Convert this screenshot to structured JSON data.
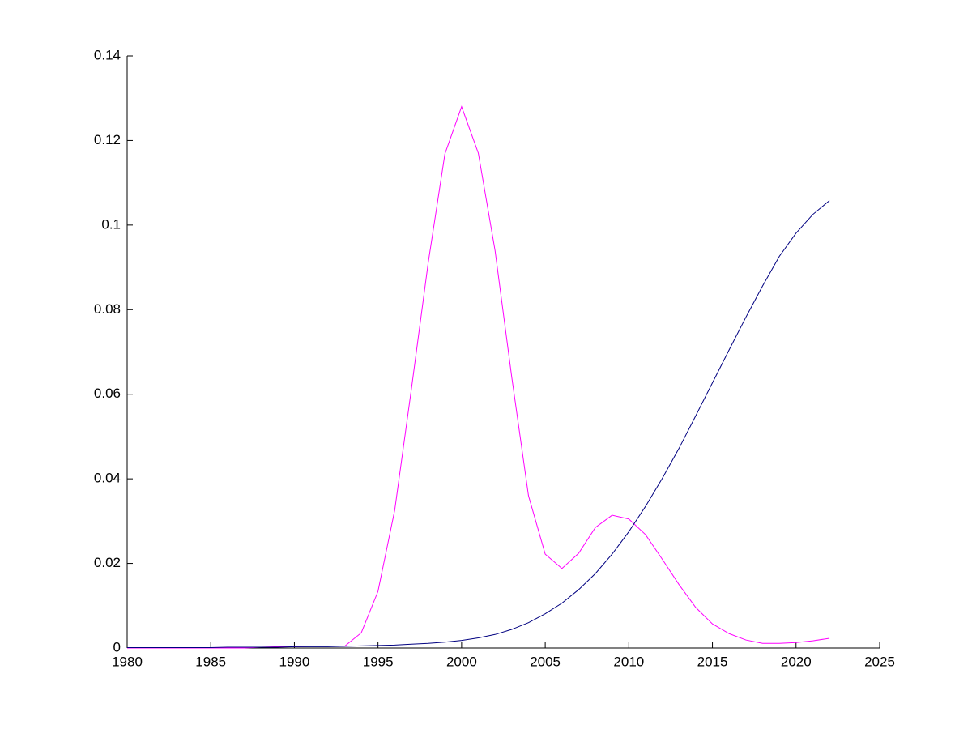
{
  "chart_data": {
    "type": "line",
    "x": [
      1980,
      1981,
      1982,
      1983,
      1984,
      1985,
      1986,
      1987,
      1988,
      1989,
      1990,
      1991,
      1992,
      1993,
      1994,
      1995,
      1996,
      1997,
      1998,
      1999,
      2000,
      2001,
      2002,
      2003,
      2004,
      2005,
      2006,
      2007,
      2008,
      2009,
      2010,
      2011,
      2012,
      2013,
      2014,
      2015,
      2016,
      2017,
      2018,
      2019,
      2020,
      2021,
      2022
    ],
    "series": [
      {
        "color": "#ff00ff",
        "values": [
          0,
          0,
          0,
          0,
          0,
          0,
          0,
          0,
          0.0002,
          0.0003,
          0.0003,
          0.0004,
          0.0004,
          0.0004,
          0.0036,
          0.0134,
          0.0326,
          0.0613,
          0.091,
          0.1168,
          0.128,
          0.117,
          0.094,
          0.064,
          0.036,
          0.0222,
          0.0188,
          0.0224,
          0.0285,
          0.0314,
          0.0305,
          0.0268,
          0.021,
          0.015,
          0.0096,
          0.0057,
          0.0034,
          0.0019,
          0.0011,
          0.0011,
          0.0013,
          0.0017,
          0.0023
        ]
      },
      {
        "color": "#000080",
        "values": [
          0.0001,
          0.0001,
          0.0001,
          0.0001,
          0.0001,
          0.0001,
          0.0002,
          0.0002,
          0.0002,
          0.0002,
          0.0003,
          0.0003,
          0.0003,
          0.0004,
          0.0005,
          0.0006,
          0.0007,
          0.0009,
          0.0011,
          0.0014,
          0.0018,
          0.0024,
          0.0032,
          0.0044,
          0.006,
          0.0081,
          0.0106,
          0.0138,
          0.0176,
          0.0222,
          0.0275,
          0.0335,
          0.0401,
          0.0472,
          0.0549,
          0.0627,
          0.0705,
          0.0782,
          0.0856,
          0.0926,
          0.0981,
          0.1025,
          0.1058
        ]
      }
    ],
    "xlim": [
      1980,
      2025
    ],
    "xticks": [
      1980,
      1985,
      1990,
      1995,
      2000,
      2005,
      2010,
      2015,
      2020,
      2025
    ],
    "ylim": [
      0,
      0.14
    ],
    "yticks": [
      0,
      0.02,
      0.04,
      0.06,
      0.08,
      0.1,
      0.12,
      0.14
    ]
  }
}
